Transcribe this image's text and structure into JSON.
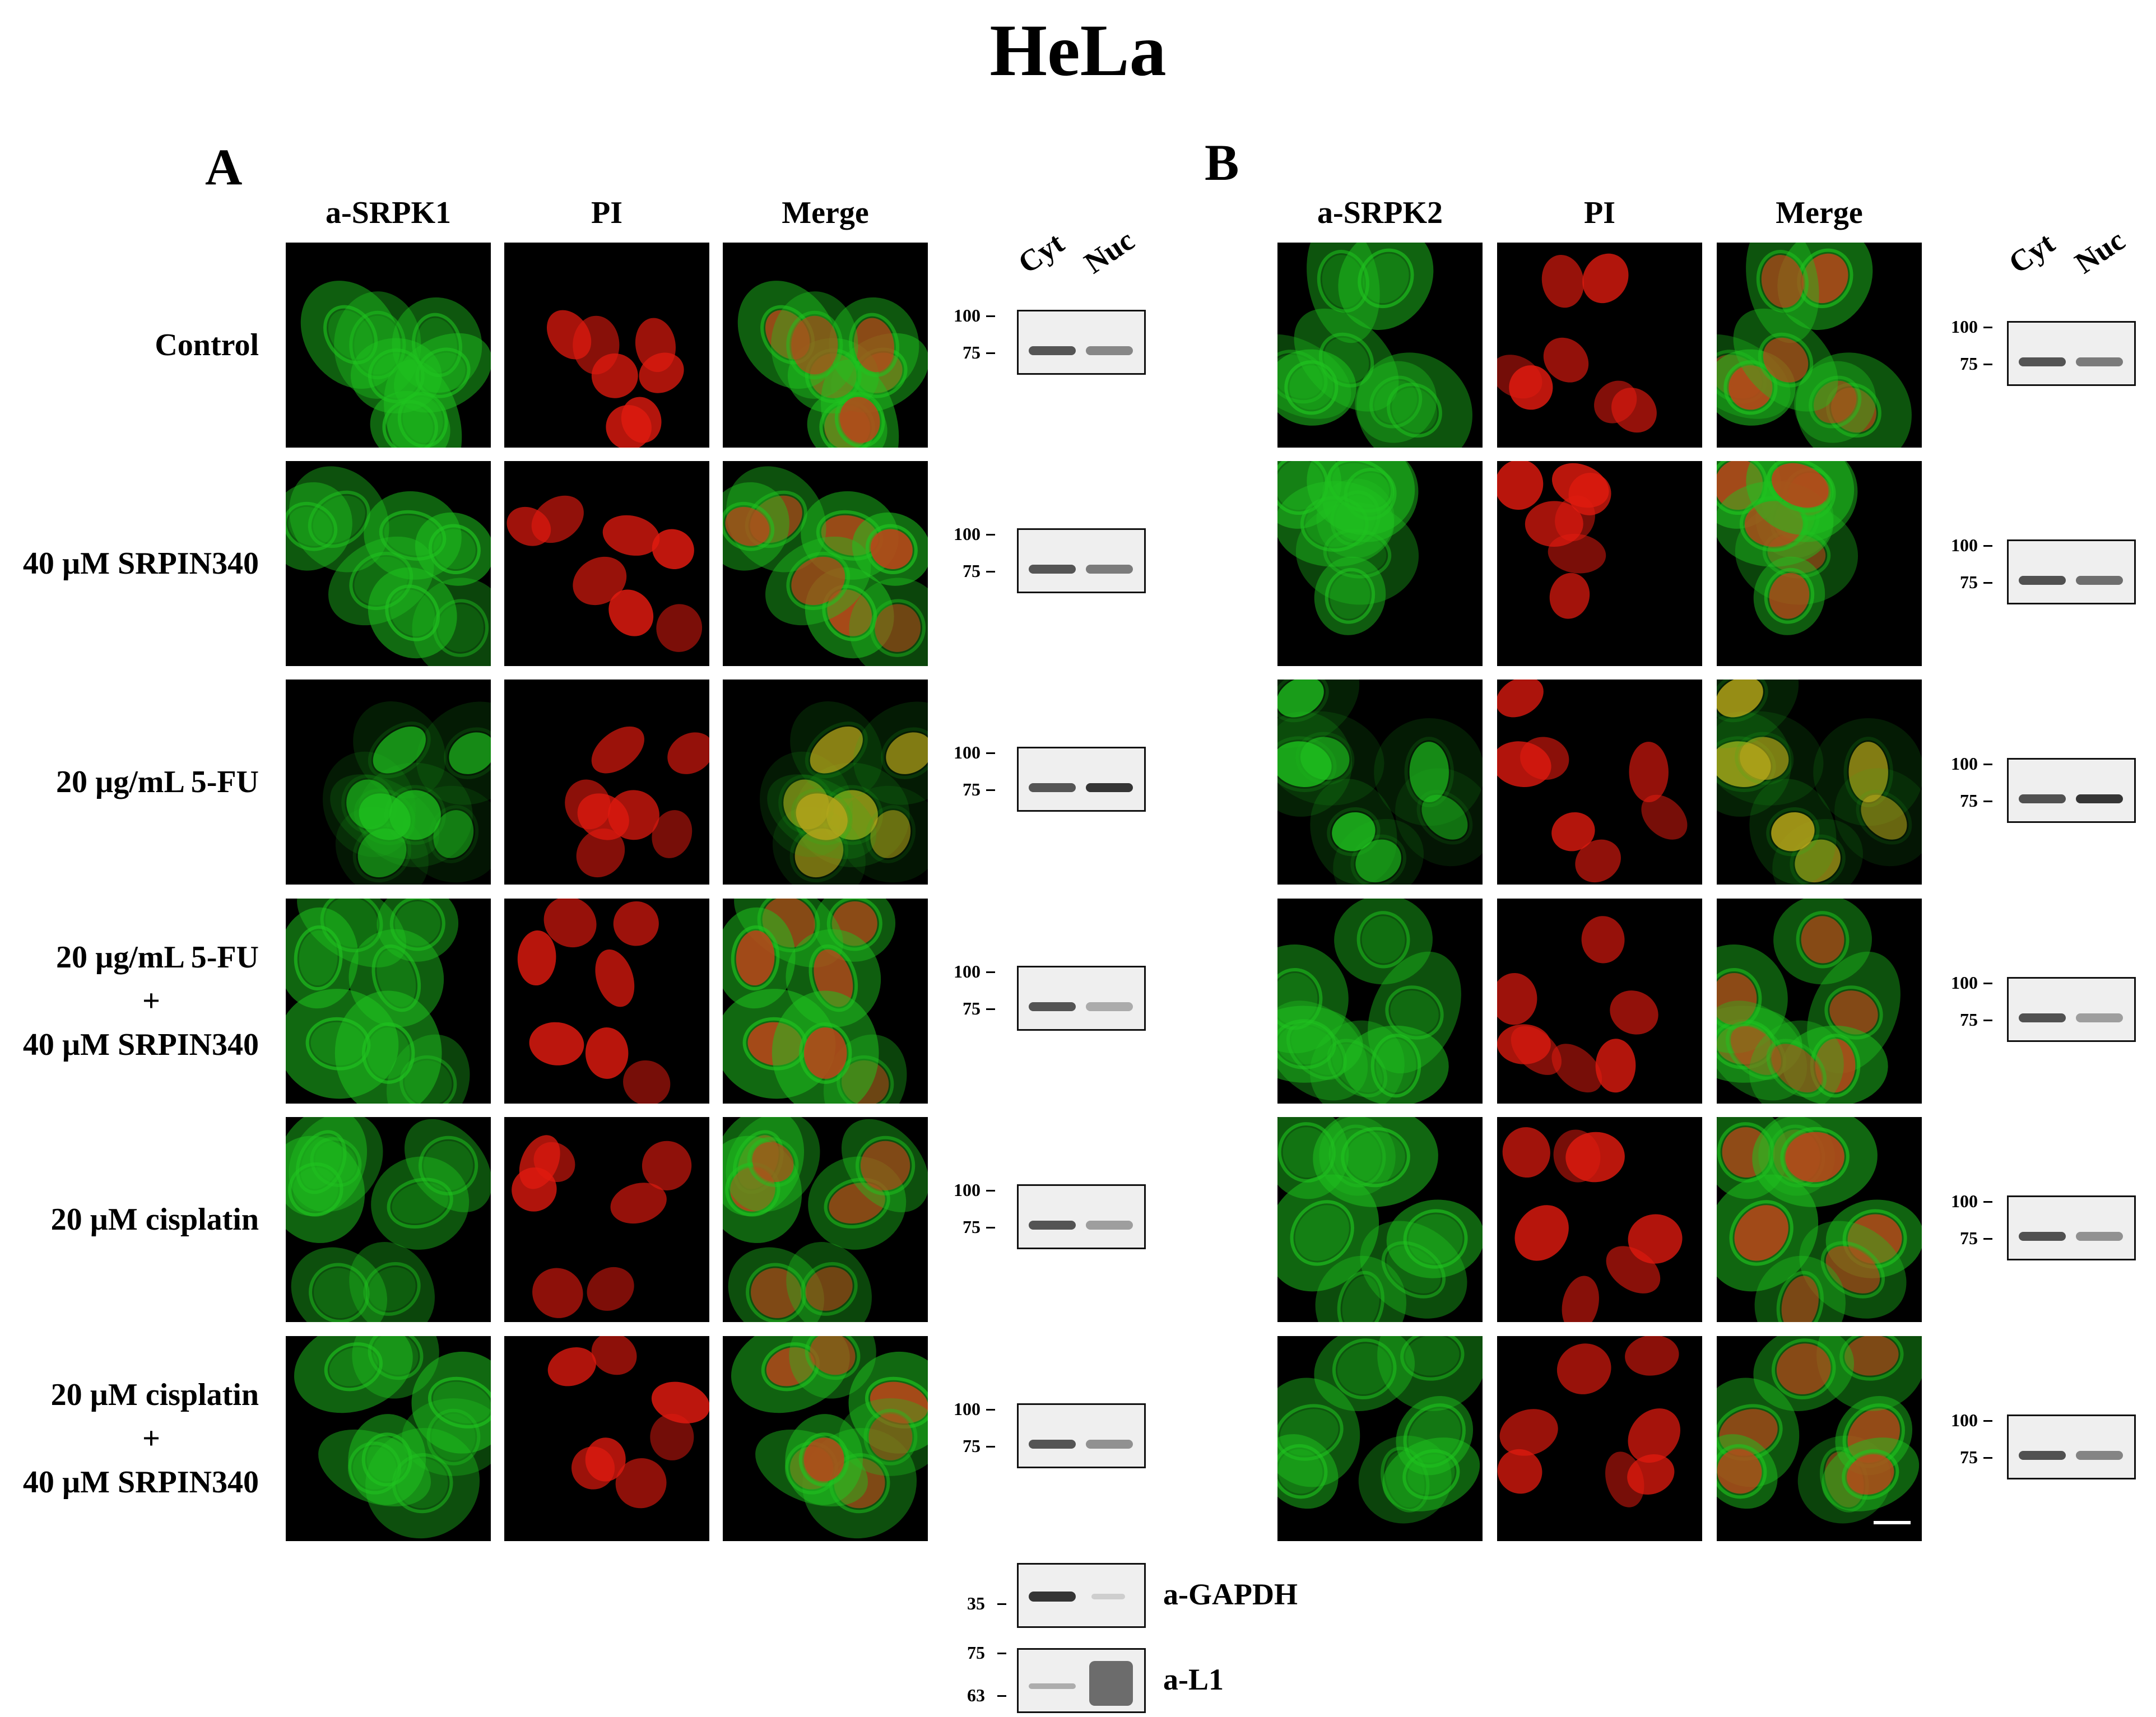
{
  "figure": {
    "title": "HeLa",
    "panels": [
      {
        "letter": "A",
        "channels": [
          "a-SRPK1",
          "PI",
          "Merge"
        ],
        "blot_lanes": [
          "Cyt",
          "Nuc"
        ]
      },
      {
        "letter": "B",
        "channels": [
          "a-SRPK2",
          "PI",
          "Merge"
        ],
        "blot_lanes": [
          "Cyt",
          "Nuc"
        ]
      }
    ],
    "row_labels": [
      [
        "Control"
      ],
      [
        "40 µM SRPIN340"
      ],
      [
        "20 µg/mL 5-FU"
      ],
      [
        "20 µg/mL 5-FU",
        "+",
        "40 µM SRPIN340"
      ],
      [
        "20 µM cisplatin"
      ],
      [
        "20 µM cisplatin",
        "+",
        "40 µM SRPIN340"
      ]
    ],
    "blot_markers": [
      "100",
      "75"
    ],
    "controls": [
      {
        "label": "a-GAPDH",
        "markers": [
          "35"
        ]
      },
      {
        "label": "a-L1",
        "markers": [
          "75",
          "63"
        ]
      }
    ],
    "colors": {
      "green_channel": "#1fc21f",
      "red_channel": "#e01a0f",
      "background": "#000000"
    }
  }
}
